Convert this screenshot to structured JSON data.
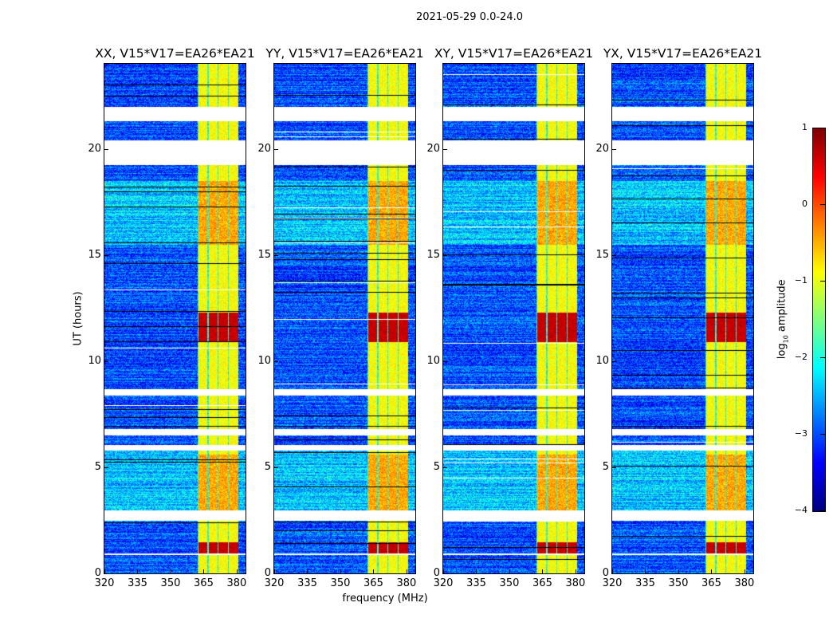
{
  "chart_data": {
    "type": "heatmap",
    "title": "2021-05-29 0.0-24.0",
    "xlabel": "frequency (MHz)",
    "ylabel": "UT (hours)",
    "xlim": [
      320,
      384
    ],
    "ylim": [
      0,
      24
    ],
    "xticks": [
      "320",
      "335",
      "350",
      "365",
      "380"
    ],
    "xtick_values": [
      320,
      335,
      350,
      365,
      380
    ],
    "yticks": [
      "0",
      "5",
      "10",
      "15",
      "20"
    ],
    "ytick_values": [
      0,
      5,
      10,
      15,
      20
    ],
    "panels": [
      {
        "title": "XX, V15*V17=EA26*EA21",
        "seed": 11
      },
      {
        "title": "YY, V15*V17=EA26*EA21",
        "seed": 23
      },
      {
        "title": "XY, V15*V17=EA26*EA21",
        "seed": 37
      },
      {
        "title": "YX, V15*V17=EA26*EA21",
        "seed": 53
      }
    ],
    "colorbar": {
      "label_main": "log",
      "label_sub": "10",
      "label_rest": " amplitude",
      "colormap": "jet",
      "range": [
        -4,
        1
      ],
      "ticks": [
        "1",
        "0",
        "−1",
        "−2",
        "−3",
        "−4"
      ],
      "tick_values": [
        1,
        0,
        -1,
        -2,
        -3,
        -4
      ]
    },
    "flagged_gaps_hours": [
      [
        0.9,
        0.95
      ],
      [
        2.5,
        2.98
      ],
      [
        5.8,
        6.05
      ],
      [
        6.5,
        6.8
      ],
      [
        8.4,
        8.7
      ],
      [
        19.25,
        20.4
      ],
      [
        21.3,
        22.0
      ]
    ],
    "rfi_band_MHz": [
      362,
      380.5
    ],
    "background_level": -3.0,
    "band_level": -0.9,
    "strong_rfi_hours": [
      [
        0.9,
        1.5
      ],
      [
        10.9,
        12.3
      ]
    ]
  }
}
